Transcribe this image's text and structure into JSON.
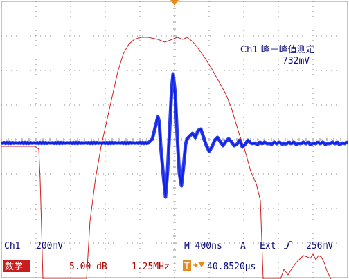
{
  "colors": {
    "grid": "#8c8c8c",
    "ch1": "#0a1ee6",
    "math": "#d21e1e",
    "text_blue": "#0a0a7a",
    "text_red": "#b40000",
    "trigger_marker": "#e68a1e",
    "math_badge_bg": "#c81e1e"
  },
  "measurement": {
    "label": "Ch1 峰－峰值测定",
    "value": "732mV"
  },
  "status": {
    "ch1_label": "Ch1",
    "ch1_scale": "200mV",
    "timebase": "M 400ns",
    "trigger_mode": "A",
    "trigger_source": "Ext",
    "trigger_slope_icon": "rising-edge-icon",
    "trigger_level": "256mV",
    "math_badge": "数学",
    "math_scale": "5.00 dB",
    "math_freq": "1.25MHz",
    "trigger_badge": "T",
    "trigger_position_icon": "trigger-position-arrow-icon",
    "trigger_position": "40.8520µs"
  }
}
